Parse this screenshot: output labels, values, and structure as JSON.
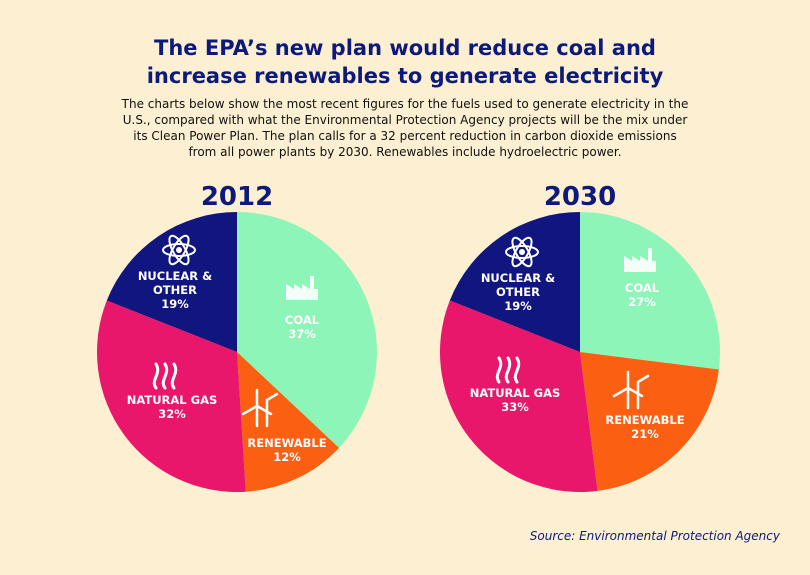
{
  "title_lines": [
    "The EPA’s new plan would reduce coal and",
    "increase renewables to generate electricity"
  ],
  "subtitle_lines": [
    "The charts below show the most recent figures for the fuels used to generate electricity in the",
    "U.S., compared with what the Environmental Protection Agency projects will be the mix under",
    "its Clean Power Plan. The plan calls for a 32 percent reduction in carbon dioxide emissions",
    "from all power plants by 2030. Renewables include hydroelectric power."
  ],
  "source": "Source: Environmental Protection Agency",
  "colors": {
    "coal": "#8ef5b8",
    "renewable": "#fb5f12",
    "natural_gas": "#e8176b",
    "nuclear_other": "#10157f",
    "title": "#0d1a7a"
  },
  "chart_data": [
    {
      "type": "pie",
      "title": "2012",
      "categories": [
        "COAL",
        "RENEWABLE",
        "NATURAL GAS",
        "NUCLEAR & OTHER"
      ],
      "values": [
        37,
        12,
        32,
        19
      ],
      "labels": [
        "37%",
        "12%",
        "32%",
        "19%"
      ],
      "icons": [
        "factory-icon",
        "wind-turbine-icon",
        "flame-icon",
        "atom-icon"
      ],
      "colors": [
        "#8ef5b8",
        "#fb5f12",
        "#e8176b",
        "#10157f"
      ]
    },
    {
      "type": "pie",
      "title": "2030",
      "categories": [
        "COAL",
        "RENEWABLE",
        "NATURAL GAS",
        "NUCLEAR & OTHER"
      ],
      "values": [
        27,
        21,
        33,
        19
      ],
      "labels": [
        "27%",
        "21%",
        "33%",
        "19%"
      ],
      "icons": [
        "factory-icon",
        "wind-turbine-icon",
        "flame-icon",
        "atom-icon"
      ],
      "colors": [
        "#8ef5b8",
        "#fb5f12",
        "#e8176b",
        "#10157f"
      ]
    }
  ]
}
